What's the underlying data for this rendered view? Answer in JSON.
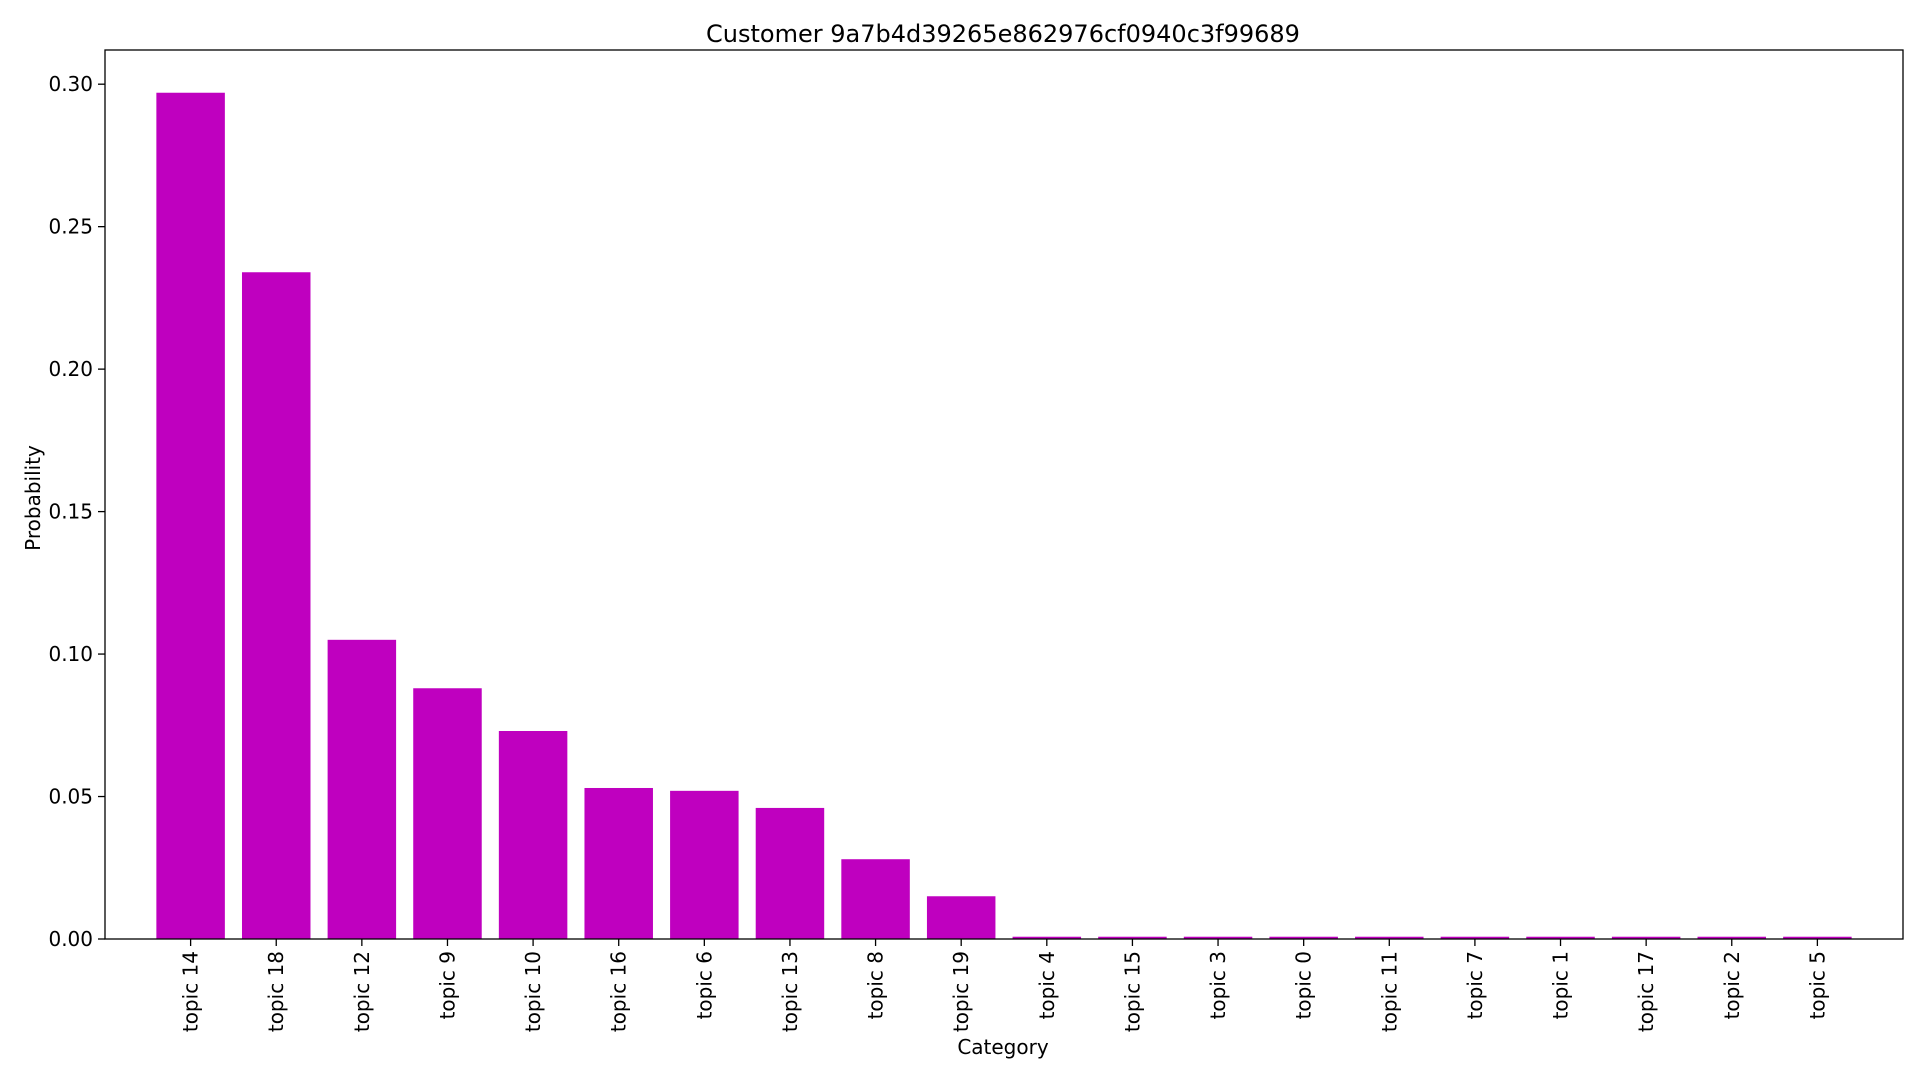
{
  "chart_data": {
    "type": "bar",
    "title": "Customer 9a7b4d39265e862976cf0940c3f99689",
    "xlabel": "Category",
    "ylabel": "Probability",
    "ylim": [
      0,
      0.312
    ],
    "yticks": [
      0.0,
      0.05,
      0.1,
      0.15,
      0.2,
      0.25,
      0.3
    ],
    "grid": false,
    "bar_color": "#bf00bf",
    "categories": [
      "topic 14",
      "topic 18",
      "topic 12",
      "topic 9",
      "topic 10",
      "topic 16",
      "topic 6",
      "topic 13",
      "topic 8",
      "topic 19",
      "topic 4",
      "topic 15",
      "topic 3",
      "topic 0",
      "topic 11",
      "topic 7",
      "topic 1",
      "topic 17",
      "topic 2",
      "topic 5"
    ],
    "values": [
      0.297,
      0.234,
      0.105,
      0.088,
      0.073,
      0.053,
      0.052,
      0.046,
      0.028,
      0.015,
      0.0008,
      0.0008,
      0.0008,
      0.0008,
      0.0008,
      0.0008,
      0.0008,
      0.0008,
      0.0008,
      0.0008
    ]
  }
}
